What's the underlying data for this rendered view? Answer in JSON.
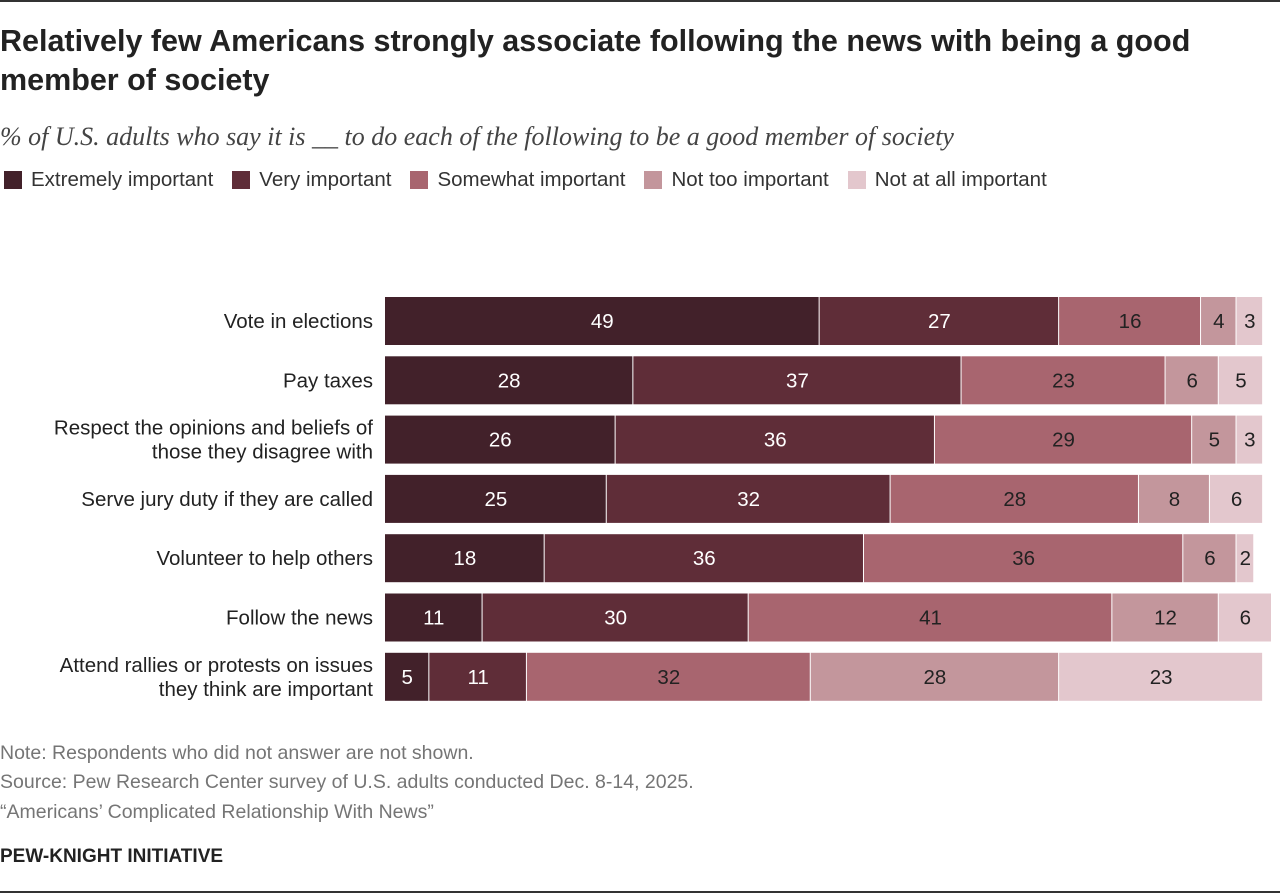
{
  "header": {
    "title": "Relatively few Americans strongly associate following the news with being a good member of society",
    "subtitle": "% of U.S. adults who say it is __ to do each of the following to be a good member of society"
  },
  "legend": [
    {
      "label": "Extremely important",
      "color": "#42212a"
    },
    {
      "label": "Very important",
      "color": "#5f2d38"
    },
    {
      "label": "Somewhat important",
      "color": "#a8656f"
    },
    {
      "label": "Not too important",
      "color": "#c3969c"
    },
    {
      "label": "Not at all important",
      "color": "#e3c7cd"
    }
  ],
  "chart_data": {
    "type": "bar",
    "orientation": "horizontal",
    "stacked": true,
    "categories": [
      [
        "Vote in elections"
      ],
      [
        "Pay taxes"
      ],
      [
        "Respect the opinions and beliefs of",
        "those they disagree with"
      ],
      [
        "Serve jury duty if they are called"
      ],
      [
        "Volunteer to help others"
      ],
      [
        "Follow the news"
      ],
      [
        "Attend rallies or protests on issues",
        "they think are important"
      ]
    ],
    "series": [
      {
        "name": "Extremely important",
        "color": "#42212a",
        "label_color": "#ffffff",
        "values": [
          49,
          28,
          26,
          25,
          18,
          11,
          5
        ]
      },
      {
        "name": "Very important",
        "color": "#5f2d38",
        "label_color": "#ffffff",
        "values": [
          27,
          37,
          36,
          32,
          36,
          30,
          11
        ]
      },
      {
        "name": "Somewhat important",
        "color": "#a8656f",
        "label_color": "#222222",
        "values": [
          16,
          23,
          29,
          28,
          36,
          41,
          32
        ]
      },
      {
        "name": "Not too important",
        "color": "#c3969c",
        "label_color": "#222222",
        "values": [
          4,
          6,
          5,
          8,
          6,
          12,
          28
        ]
      },
      {
        "name": "Not at all important",
        "color": "#e3c7cd",
        "label_color": "#222222",
        "values": [
          3,
          5,
          3,
          6,
          2,
          6,
          23
        ]
      }
    ],
    "xlim": [
      0,
      100
    ],
    "grid": false,
    "legend_position": "top-left"
  },
  "footer": {
    "note": "Note: Respondents who did not answer are not shown.",
    "source": "Source: Pew Research Center survey of U.S. adults conducted Dec. 8-14, 2025.",
    "report": "“Americans’ Complicated Relationship With News”",
    "org": "PEW-KNIGHT INITIATIVE"
  }
}
